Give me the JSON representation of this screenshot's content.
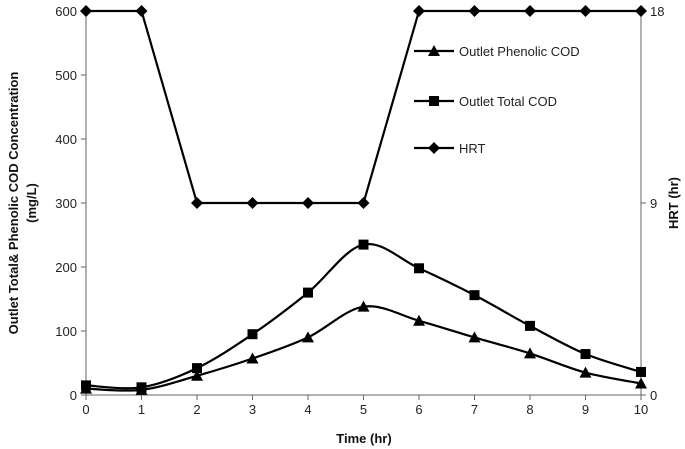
{
  "chart_data": {
    "type": "line",
    "x": [
      0,
      1,
      2,
      3,
      4,
      5,
      6,
      7,
      8,
      9,
      10
    ],
    "xlabel": "Time (hr)",
    "ylabel_line1": "Outlet Total& Phenolic COD Concentration",
    "ylabel_line2": "(mg/L)",
    "y2label": "HRT (hr)",
    "xlim": [
      0,
      10
    ],
    "ylim": [
      0,
      600
    ],
    "y2lim": [
      0,
      18
    ],
    "x_ticks": [
      0,
      1,
      2,
      3,
      4,
      5,
      6,
      7,
      8,
      9,
      10
    ],
    "y_ticks": [
      0,
      100,
      200,
      300,
      400,
      500,
      600
    ],
    "y2_ticks": [
      0,
      9,
      18
    ],
    "grid": false,
    "legend_position": "top-right",
    "series": [
      {
        "name": "Outlet Phenolic COD",
        "axis": "left",
        "marker": "triangle",
        "values": [
          10,
          8,
          30,
          57,
          90,
          138,
          116,
          90,
          65,
          35,
          18
        ]
      },
      {
        "name": "Outlet Total COD",
        "axis": "left",
        "marker": "square",
        "values": [
          15,
          12,
          42,
          95,
          160,
          235,
          198,
          156,
          108,
          64,
          36
        ]
      },
      {
        "name": "HRT",
        "axis": "right",
        "marker": "diamond",
        "values": [
          18,
          18,
          9,
          9,
          9,
          9,
          18,
          18,
          18,
          18,
          18
        ]
      }
    ]
  }
}
